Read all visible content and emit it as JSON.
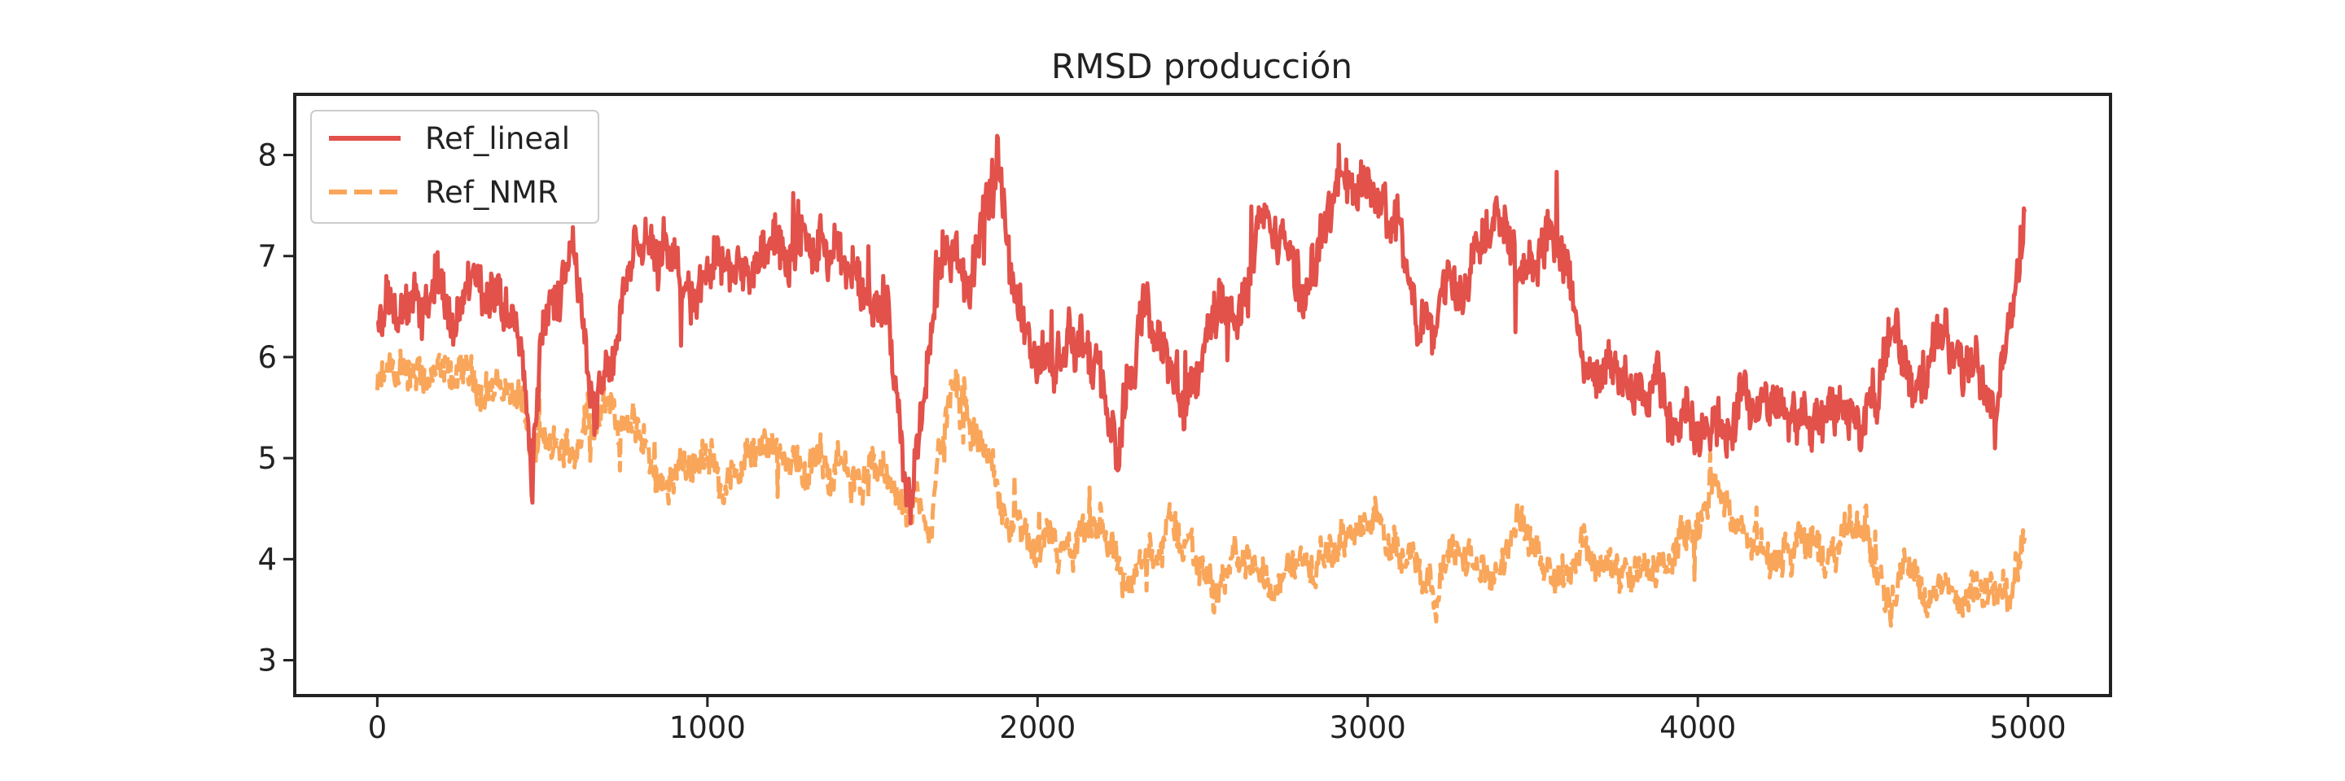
{
  "chart_data": {
    "type": "line",
    "title": "RMSD producción",
    "xlabel": "",
    "ylabel": "",
    "xlim": [
      -250,
      5250
    ],
    "ylim": [
      2.65,
      8.6
    ],
    "xticks": [
      0,
      1000,
      2000,
      3000,
      4000,
      5000
    ],
    "yticks": [
      3,
      4,
      5,
      6,
      7,
      8
    ],
    "grid": false,
    "legend_position": "upper left",
    "series": [
      {
        "name": "Ref_lineal",
        "style": "solid",
        "color": "#e2514a",
        "x": [
          0,
          30,
          60,
          100,
          150,
          200,
          250,
          300,
          350,
          400,
          440,
          470,
          490,
          520,
          550,
          600,
          630,
          660,
          700,
          750,
          800,
          850,
          900,
          950,
          1000,
          1050,
          1100,
          1150,
          1200,
          1250,
          1300,
          1350,
          1400,
          1450,
          1500,
          1550,
          1580,
          1600,
          1620,
          1650,
          1680,
          1700,
          1730,
          1760,
          1790,
          1820,
          1850,
          1880,
          1900,
          1930,
          1960,
          2000,
          2050,
          2100,
          2150,
          2200,
          2240,
          2280,
          2320,
          2350,
          2400,
          2450,
          2500,
          2550,
          2600,
          2650,
          2700,
          2750,
          2800,
          2850,
          2900,
          2940,
          2980,
          3020,
          3060,
          3100,
          3150,
          3200,
          3250,
          3300,
          3350,
          3400,
          3450,
          3500,
          3550,
          3600,
          3650,
          3700,
          3750,
          3800,
          3850,
          3900,
          3950,
          4000,
          4050,
          4100,
          4150,
          4200,
          4250,
          4300,
          4350,
          4400,
          4450,
          4500,
          4550,
          4600,
          4650,
          4700,
          4750,
          4800,
          4850,
          4900,
          4950,
          4990
        ],
        "y": [
          6.4,
          6.5,
          6.7,
          6.3,
          6.6,
          6.7,
          6.5,
          6.6,
          6.4,
          6.6,
          6.5,
          4.9,
          6.2,
          6.8,
          6.5,
          6.9,
          6.3,
          5.6,
          6.0,
          6.7,
          7.1,
          6.9,
          7.1,
          6.6,
          7.1,
          6.9,
          7.0,
          6.8,
          7.0,
          6.9,
          7.1,
          6.9,
          6.8,
          6.9,
          6.7,
          6.3,
          5.6,
          5.0,
          4.7,
          5.3,
          6.2,
          6.7,
          7.0,
          6.9,
          6.8,
          7.0,
          7.3,
          7.9,
          7.4,
          6.6,
          6.2,
          6.1,
          6.0,
          6.2,
          5.9,
          5.6,
          5.0,
          5.5,
          6.5,
          6.2,
          5.8,
          5.5,
          6.0,
          6.6,
          6.3,
          6.9,
          7.2,
          7.0,
          6.6,
          7.0,
          7.5,
          7.9,
          7.8,
          7.6,
          7.4,
          7.1,
          6.1,
          6.6,
          7.0,
          6.8,
          7.3,
          7.7,
          7.2,
          7.0,
          7.2,
          6.9,
          6.1,
          5.7,
          5.8,
          5.6,
          5.7,
          5.5,
          5.4,
          5.5,
          5.4,
          5.5,
          5.4,
          5.5,
          5.6,
          5.4,
          5.3,
          5.7,
          5.5,
          5.2,
          5.8,
          6.2,
          5.6,
          5.9,
          6.2,
          5.7,
          6.1,
          5.5,
          6.4,
          7.3
        ],
        "amp": 0.42
      },
      {
        "name": "Ref_NMR",
        "style": "dashed",
        "color": "#f9a65a",
        "x": [
          0,
          50,
          100,
          150,
          200,
          250,
          300,
          350,
          400,
          440,
          460,
          500,
          550,
          600,
          650,
          700,
          750,
          800,
          850,
          900,
          950,
          1000,
          1050,
          1100,
          1150,
          1200,
          1250,
          1300,
          1350,
          1400,
          1450,
          1500,
          1550,
          1580,
          1600,
          1640,
          1680,
          1700,
          1730,
          1760,
          1800,
          1850,
          1900,
          1950,
          2000,
          2050,
          2100,
          2150,
          2200,
          2250,
          2300,
          2350,
          2400,
          2450,
          2500,
          2550,
          2600,
          2650,
          2700,
          2750,
          2800,
          2850,
          2900,
          2950,
          3000,
          3050,
          3100,
          3150,
          3200,
          3250,
          3300,
          3350,
          3400,
          3450,
          3500,
          3550,
          3600,
          3650,
          3700,
          3750,
          3800,
          3850,
          3900,
          3950,
          4000,
          4050,
          4100,
          4150,
          4200,
          4250,
          4300,
          4350,
          4400,
          4450,
          4500,
          4550,
          4600,
          4650,
          4700,
          4750,
          4800,
          4850,
          4900,
          4950,
          4990
        ],
        "y": [
          5.7,
          5.8,
          5.6,
          5.75,
          5.7,
          5.8,
          5.75,
          5.7,
          5.7,
          5.6,
          5.1,
          5.1,
          5.0,
          5.1,
          5.5,
          5.5,
          5.3,
          5.2,
          4.8,
          4.9,
          5.0,
          4.9,
          4.95,
          4.9,
          5.0,
          4.9,
          4.95,
          4.9,
          4.9,
          5.0,
          4.8,
          4.9,
          4.7,
          4.4,
          4.6,
          4.5,
          4.3,
          5.0,
          5.5,
          5.6,
          5.3,
          5.0,
          4.4,
          4.2,
          3.9,
          4.1,
          3.9,
          4.2,
          4.3,
          3.9,
          3.8,
          4.1,
          4.3,
          4.2,
          3.9,
          3.8,
          3.9,
          4.0,
          3.8,
          3.9,
          4.0,
          3.8,
          4.1,
          4.3,
          4.2,
          4.4,
          4.2,
          4.0,
          3.8,
          4.1,
          4.0,
          3.8,
          3.9,
          4.3,
          4.2,
          4.0,
          3.9,
          4.2,
          4.0,
          3.9,
          3.7,
          3.8,
          4.0,
          4.1,
          4.3,
          4.6,
          4.5,
          4.3,
          4.1,
          4.0,
          4.2,
          4.1,
          4.0,
          4.2,
          4.4,
          3.8,
          3.8,
          3.9,
          3.7,
          3.6,
          3.5,
          3.6,
          3.7,
          3.8,
          4.1
        ],
        "amp": 0.3
      }
    ]
  }
}
